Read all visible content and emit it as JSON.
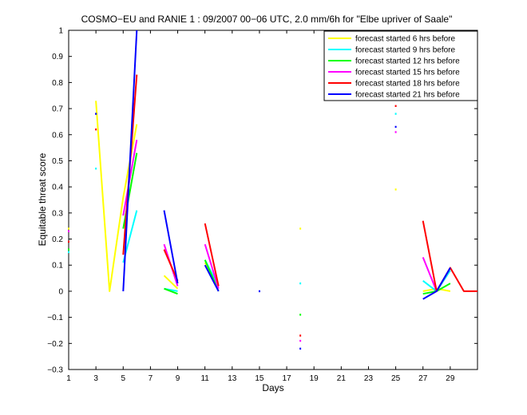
{
  "chart_data": {
    "type": "line",
    "title": "COSMO−EU and RANIE 1 : 09/2007 00−06 UTC, 2.0 mm/6h for \"Elbe upriver of Saale\"",
    "xlabel": "Days",
    "ylabel": "Equitable threat score",
    "xlim": [
      1,
      31
    ],
    "ylim": [
      -0.3,
      1
    ],
    "xticks": [
      1,
      3,
      5,
      7,
      9,
      11,
      13,
      15,
      17,
      19,
      21,
      23,
      25,
      27,
      29
    ],
    "xtick_labels": [
      "1",
      "3",
      "5",
      "7",
      "9",
      "11",
      "13",
      "15",
      "17",
      "19",
      "21",
      "23",
      "25",
      "27",
      "29"
    ],
    "yticks": [
      -0.3,
      -0.2,
      -0.1,
      0,
      0.1,
      0.2,
      0.3,
      0.4,
      0.5,
      0.6,
      0.7,
      0.8,
      0.9,
      1
    ],
    "ytick_labels": [
      "−0.3",
      "−0.2",
      "−0.1",
      "0",
      "0.1",
      "0.2",
      "0.3",
      "0.4",
      "0.5",
      "0.6",
      "0.7",
      "0.8",
      "0.9",
      "1"
    ],
    "grid": false,
    "legend_position": "top-right",
    "x": [
      1,
      2,
      3,
      4,
      5,
      6,
      7,
      8,
      9,
      10,
      11,
      12,
      13,
      14,
      15,
      16,
      17,
      18,
      19,
      20,
      21,
      22,
      23,
      24,
      25,
      26,
      27,
      28,
      29,
      30,
      31
    ],
    "series": [
      {
        "name": "forecast started 6 hrs before",
        "color": "#ffff00",
        "values": [
          0.24,
          null,
          0.73,
          0.0,
          0.36,
          0.64,
          null,
          0.06,
          0.01,
          null,
          0.11,
          0.02,
          null,
          null,
          null,
          null,
          null,
          0.24,
          null,
          null,
          null,
          null,
          null,
          null,
          0.39,
          null,
          0.0,
          0.01,
          0.0,
          null,
          null
        ]
      },
      {
        "name": "forecast started 9 hrs before",
        "color": "#00ffff",
        "values": [
          0.15,
          null,
          0.47,
          null,
          0.11,
          0.31,
          null,
          0.01,
          0.0,
          null,
          0.12,
          0.02,
          null,
          null,
          null,
          null,
          null,
          0.03,
          null,
          null,
          null,
          null,
          null,
          null,
          0.68,
          null,
          0.04,
          0.0,
          0.08,
          null,
          null
        ]
      },
      {
        "name": "forecast started 12 hrs before",
        "color": "#00ff00",
        "values": [
          0.16,
          null,
          null,
          null,
          0.24,
          0.53,
          null,
          0.01,
          -0.01,
          null,
          0.12,
          0.0,
          null,
          null,
          null,
          null,
          null,
          -0.09,
          null,
          null,
          null,
          null,
          null,
          null,
          null,
          null,
          -0.01,
          0.0,
          0.03,
          null,
          null
        ]
      },
      {
        "name": "forecast started 15 hrs before",
        "color": "#ff00ff",
        "values": [
          0.23,
          null,
          null,
          null,
          0.29,
          0.58,
          null,
          0.18,
          0.02,
          null,
          0.18,
          0.01,
          null,
          null,
          null,
          null,
          null,
          -0.19,
          null,
          null,
          null,
          null,
          null,
          null,
          0.61,
          null,
          0.13,
          0.0,
          0.09,
          null,
          null
        ]
      },
      {
        "name": "forecast started 18 hrs before",
        "color": "#ff0000",
        "values": [
          0.19,
          null,
          0.62,
          null,
          0.14,
          0.83,
          null,
          0.16,
          0.04,
          null,
          0.26,
          0.02,
          null,
          null,
          null,
          null,
          null,
          -0.17,
          null,
          null,
          null,
          null,
          null,
          null,
          0.71,
          null,
          0.27,
          0.0,
          0.09,
          0.0,
          0.0
        ]
      },
      {
        "name": "forecast started 21 hrs before",
        "color": "#0000ff",
        "values": [
          null,
          null,
          0.68,
          null,
          0.0,
          1.0,
          null,
          0.31,
          0.03,
          null,
          0.1,
          0.0,
          null,
          null,
          0.0,
          null,
          null,
          -0.22,
          null,
          null,
          null,
          null,
          null,
          null,
          0.63,
          null,
          -0.03,
          0.0,
          0.09,
          null,
          null
        ]
      }
    ]
  }
}
